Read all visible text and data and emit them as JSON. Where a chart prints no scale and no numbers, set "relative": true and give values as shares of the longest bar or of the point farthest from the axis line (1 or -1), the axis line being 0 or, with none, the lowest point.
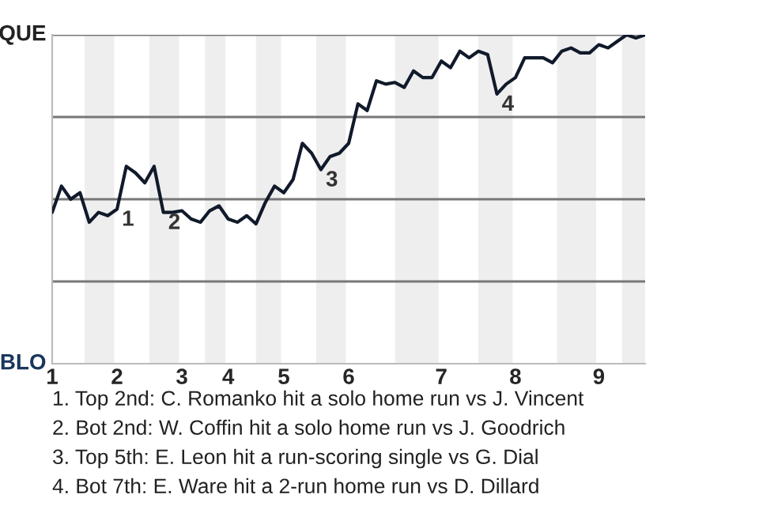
{
  "chart_data": {
    "type": "line",
    "relative": true,
    "categories": [
      "1",
      null,
      null,
      null,
      null,
      null,
      null,
      "2",
      null,
      null,
      null,
      null,
      null,
      null,
      "3",
      null,
      null,
      null,
      null,
      "4",
      null,
      null,
      null,
      null,
      null,
      "5",
      null,
      null,
      null,
      null,
      null,
      null,
      "6",
      null,
      null,
      null,
      null,
      null,
      null,
      null,
      null,
      null,
      "7",
      null,
      null,
      null,
      null,
      null,
      null,
      null,
      "8",
      null,
      null,
      null,
      null,
      null,
      null,
      null,
      null,
      "9",
      null,
      null,
      null,
      null,
      null
    ],
    "series": [
      {
        "color": "#111a2b",
        "values": [
          0.46,
          0.54,
          0.5,
          0.52,
          0.43,
          0.46,
          0.45,
          0.47,
          0.6,
          0.58,
          0.55,
          0.6,
          0.46,
          0.46,
          0.465,
          0.44,
          0.43,
          0.465,
          0.48,
          0.44,
          0.43,
          0.45,
          0.425,
          0.49,
          0.54,
          0.52,
          0.56,
          0.67,
          0.64,
          0.59,
          0.63,
          0.64,
          0.67,
          0.79,
          0.77,
          0.86,
          0.85,
          0.855,
          0.84,
          0.89,
          0.87,
          0.87,
          0.92,
          0.9,
          0.95,
          0.93,
          0.95,
          0.94,
          0.82,
          0.85,
          0.87,
          0.93,
          0.93,
          0.93,
          0.915,
          0.95,
          0.96,
          0.945,
          0.945,
          0.97,
          0.96,
          0.98,
          1.0,
          0.99,
          1.0
        ]
      }
    ],
    "grid": "y",
    "marker": "none",
    "line_style": "solid",
    "annotations": [
      "QUE",
      "BLO",
      {
        "text": "1",
        "x": "2",
        "y": 0.47
      },
      {
        "text": "2",
        "y": 0.46
      },
      {
        "text": "3",
        "y": 0.59
      },
      {
        "text": "4",
        "y": 0.82
      },
      "1. Top 2nd: C. Romanko hit a solo home run vs J. Vincent",
      "2. Bot 2nd: W. Coffin hit a solo home run vs J. Goodrich",
      "3. Top 5th: E. Leon hit a run-scoring single vs G. Dial",
      "4. Bot 7th: E. Ware hit a 2-run home run vs D. Dillard"
    ]
  }
}
